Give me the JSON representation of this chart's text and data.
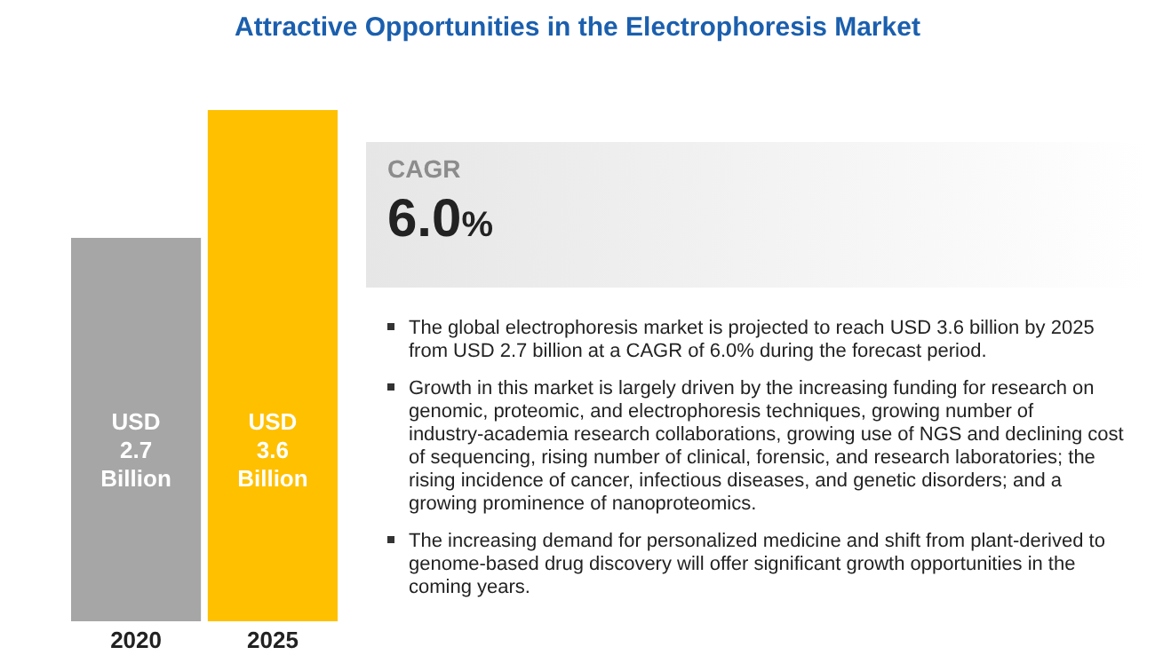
{
  "chart_data": [
    {
      "type": "bar",
      "title": "Attractive Opportunities in the Electrophoresis Market",
      "categories": [
        "2020",
        "2025"
      ],
      "values": [
        2.7,
        3.6
      ],
      "colors": [
        "#a6a6a6",
        "#ffc000"
      ],
      "value_labels": [
        "USD 2.7 Billion",
        "USD 3.6 Billion"
      ]
    },
    {
      "type": "other",
      "annotations": [
        "CAGR",
        "6.0%",
        "The global electrophoresis market is projected to reach USD 3.6 billion by 2025 from USD 2.7 billion at a CAGR of 6.0% during the forecast period.",
        "Growth in this market is largely driven by the increasing funding for research on genomic, proteomic, and electrophoresis techniques, growing number of industry-academia research collaborations, growing use of NGS and declining cost of sequencing, rising number of clinical, forensic, and research laboratories; the rising incidence of cancer, infectious diseases, and genetic disorders; and a growing prominence of nanoproteomics.",
        "The increasing demand for personalized medicine and shift from plant-derived to genome-based drug discovery will offer significant growth opportunities in the coming years."
      ]
    }
  ]
}
